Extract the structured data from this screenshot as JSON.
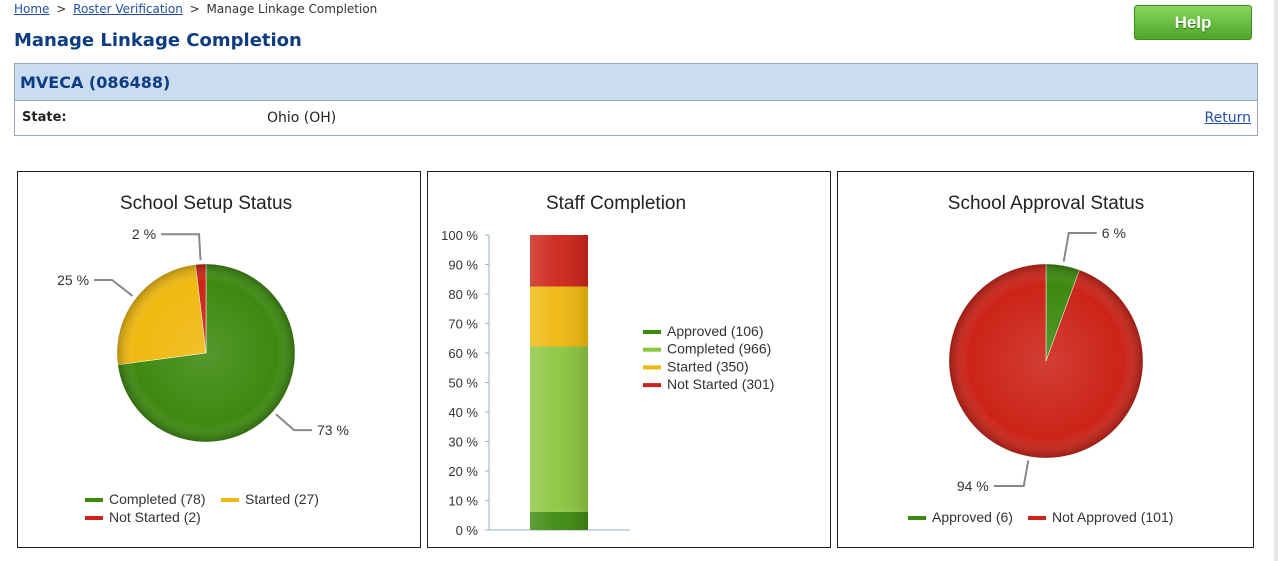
{
  "breadcrumb": {
    "home": "Home",
    "roster": "Roster Verification",
    "separator": ">",
    "current": "Manage Linkage Completion"
  },
  "help_label": "Help",
  "page_title": "Manage Linkage Completion",
  "entity": {
    "name": "MVECA (086488)",
    "state_label": "State:",
    "state_value": "Ohio (OH)",
    "return_label": "Return"
  },
  "chart_data": [
    {
      "type": "pie",
      "title": "School Setup Status",
      "slices": [
        {
          "name": "Completed",
          "value": 78,
          "count_label": "(78)",
          "percent_label": "73 %",
          "color": "#3d8a10"
        },
        {
          "name": "Started",
          "value": 27,
          "count_label": "(27)",
          "percent_label": "25 %",
          "color": "#f0b90f"
        },
        {
          "name": "Not Started",
          "value": 2,
          "count_label": "(2)",
          "percent_label": "2 %",
          "color": "#cc2418"
        }
      ],
      "legend": {
        "placement": "bottom",
        "entries": [
          "Completed (78)",
          "Started (27)",
          "Not Started (2)"
        ]
      }
    },
    {
      "type": "bar",
      "stacked": true,
      "percent_stacked": true,
      "title": "Staff Completion",
      "ylim": [
        0,
        100
      ],
      "yticks": [
        "0 %",
        "10 %",
        "20 %",
        "30 %",
        "40 %",
        "50 %",
        "60 %",
        "70 %",
        "80 %",
        "90 %",
        "100 %"
      ],
      "series": [
        {
          "name": "Approved",
          "value": 106,
          "color": "#3d8a10"
        },
        {
          "name": "Completed",
          "value": 966,
          "color": "#8cc63f"
        },
        {
          "name": "Started",
          "value": 350,
          "color": "#f0b90f"
        },
        {
          "name": "Not Started",
          "value": 301,
          "color": "#cc2418"
        }
      ],
      "legend": {
        "placement": "right",
        "entries": [
          "Approved (106)",
          "Completed (966)",
          "Started (350)",
          "Not Started (301)"
        ]
      }
    },
    {
      "type": "pie",
      "title": "School Approval Status",
      "slices": [
        {
          "name": "Approved",
          "value": 6,
          "count_label": "(6)",
          "percent_label": "6 %",
          "color": "#3d8a10"
        },
        {
          "name": "Not Approved",
          "value": 101,
          "count_label": "(101)",
          "percent_label": "94 %",
          "color": "#cc2418"
        }
      ],
      "legend": {
        "placement": "bottom",
        "entries": [
          "Approved (6)",
          "Not Approved (101)"
        ]
      }
    }
  ]
}
